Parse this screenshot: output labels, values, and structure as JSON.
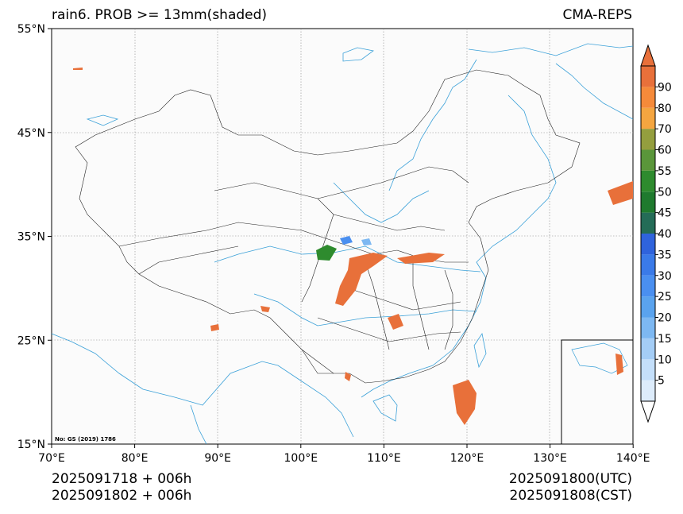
{
  "title": "rain6. PROB >= 13mm(shaded)",
  "model": "CMA-REPS",
  "footer": {
    "left_line1": "2025091718  +  006h",
    "left_line2": "2025091802  +  006h",
    "right_line1": "2025091800(UTC)",
    "right_line2": "2025091808(CST)"
  },
  "map_note": "No: GS (2019) 1786",
  "lon_labels": [
    "70°E",
    "80°E",
    "90°E",
    "100°E",
    "110°E",
    "120°E",
    "130°E",
    "140°E"
  ],
  "lat_labels": [
    "55°N",
    "45°N",
    "35°N",
    "25°N",
    "15°N"
  ],
  "colorbar": {
    "ticks": [
      "5",
      "10",
      "15",
      "20",
      "25",
      "30",
      "35",
      "40",
      "45",
      "50",
      "55",
      "60",
      "70",
      "80",
      "90"
    ],
    "colors": [
      "#ddecfb",
      "#c4dffa",
      "#a4cdf6",
      "#7db8f2",
      "#5aa3ee",
      "#4a8ff0",
      "#3a7ae8",
      "#2f63dc",
      "#246c57",
      "#1f7a2e",
      "#2e8b2e",
      "#5a963a",
      "#949e3e",
      "#f4a540",
      "#f58a3a",
      "#e8703a"
    ]
  },
  "legend_hidden": true
}
